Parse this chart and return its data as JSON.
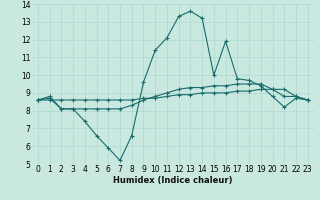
{
  "xlabel": "Humidex (Indice chaleur)",
  "ylabel": "",
  "xlim": [
    -0.5,
    23.5
  ],
  "ylim": [
    5,
    14
  ],
  "xticks": [
    0,
    1,
    2,
    3,
    4,
    5,
    6,
    7,
    8,
    9,
    10,
    11,
    12,
    13,
    14,
    15,
    16,
    17,
    18,
    19,
    20,
    21,
    22,
    23
  ],
  "yticks": [
    5,
    6,
    7,
    8,
    9,
    10,
    11,
    12,
    13,
    14
  ],
  "bg_color": "#c8e8e0",
  "line_color": "#1a6b6b",
  "grid_color": "#b0d8d0",
  "line1_x": [
    0,
    1,
    2,
    3,
    4,
    5,
    6,
    7,
    8,
    9,
    10,
    11,
    12,
    13,
    14,
    15,
    16,
    17,
    18,
    19,
    20,
    21,
    22,
    23
  ],
  "line1_y": [
    8.6,
    8.8,
    8.1,
    8.1,
    7.4,
    6.6,
    5.9,
    5.2,
    6.6,
    9.6,
    11.4,
    12.1,
    13.3,
    13.6,
    13.2,
    10.0,
    11.9,
    9.8,
    9.7,
    9.4,
    8.8,
    8.2,
    8.7,
    8.6
  ],
  "line2_x": [
    0,
    1,
    2,
    3,
    4,
    5,
    6,
    7,
    8,
    9,
    10,
    11,
    12,
    13,
    14,
    15,
    16,
    17,
    18,
    19,
    20,
    21,
    22,
    23
  ],
  "line2_y": [
    8.6,
    8.6,
    8.6,
    8.6,
    8.6,
    8.6,
    8.6,
    8.6,
    8.6,
    8.7,
    8.7,
    8.8,
    8.9,
    8.9,
    9.0,
    9.0,
    9.0,
    9.1,
    9.1,
    9.2,
    9.2,
    9.2,
    8.8,
    8.6
  ],
  "line3_x": [
    0,
    1,
    2,
    3,
    4,
    5,
    6,
    7,
    8,
    9,
    10,
    11,
    12,
    13,
    14,
    15,
    16,
    17,
    18,
    19,
    20,
    21,
    22,
    23
  ],
  "line3_y": [
    8.6,
    8.7,
    8.1,
    8.1,
    8.1,
    8.1,
    8.1,
    8.1,
    8.3,
    8.6,
    8.8,
    9.0,
    9.2,
    9.3,
    9.3,
    9.4,
    9.4,
    9.5,
    9.5,
    9.5,
    9.2,
    8.8,
    8.8,
    8.6
  ],
  "xlabel_fontsize": 6.0,
  "tick_fontsize": 5.5
}
